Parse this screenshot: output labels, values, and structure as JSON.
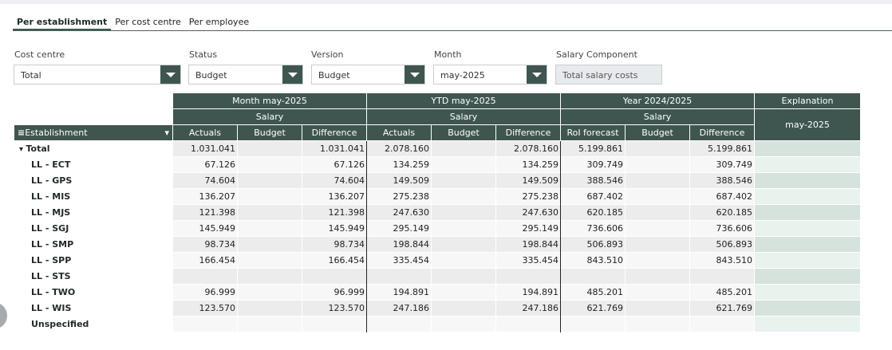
{
  "tabs": [
    {
      "label": "Per establishment",
      "active": true
    },
    {
      "label": "Per cost centre",
      "active": false
    },
    {
      "label": "Per employee",
      "active": false
    }
  ],
  "filters": {
    "cost_centre": {
      "label": "Cost centre",
      "value": "Total"
    },
    "status": {
      "label": "Status",
      "value": "Budget"
    },
    "version": {
      "label": "Version",
      "value": "Budget"
    },
    "month": {
      "label": "Month",
      "value": "may-2025"
    },
    "salary_component": {
      "label": "Salary Component",
      "value": "Total salary costs"
    }
  },
  "table": {
    "groups": [
      "Month may-2025",
      "YTD may-2025",
      "Year 2024/2025"
    ],
    "subgroup": "Salary",
    "explanation": {
      "label": "Explanation",
      "sub": "may-2025"
    },
    "establishment_header": "Establishment",
    "columns": [
      "Actuals",
      "Budget",
      "Difference",
      "Actuals",
      "Budget",
      "Difference",
      "RoI forecast",
      "Budget",
      "Difference"
    ],
    "rows": [
      {
        "label": "Total",
        "values": [
          "1.031.041",
          "",
          "1.031.041",
          "2.078.160",
          "",
          "2.078.160",
          "5.199.861",
          "",
          "5.199.861"
        ]
      },
      {
        "label": "LL - ECT",
        "values": [
          "67.126",
          "",
          "67.126",
          "134.259",
          "",
          "134.259",
          "309.749",
          "",
          "309.749"
        ]
      },
      {
        "label": "LL - GPS",
        "values": [
          "74.604",
          "",
          "74.604",
          "149.509",
          "",
          "149.509",
          "388.546",
          "",
          "388.546"
        ]
      },
      {
        "label": "LL - MIS",
        "values": [
          "136.207",
          "",
          "136.207",
          "275.238",
          "",
          "275.238",
          "687.402",
          "",
          "687.402"
        ]
      },
      {
        "label": "LL - MJS",
        "values": [
          "121.398",
          "",
          "121.398",
          "247.630",
          "",
          "247.630",
          "620.185",
          "",
          "620.185"
        ]
      },
      {
        "label": "LL - SGJ",
        "values": [
          "145.949",
          "",
          "145.949",
          "295.149",
          "",
          "295.149",
          "736.606",
          "",
          "736.606"
        ]
      },
      {
        "label": "LL - SMP",
        "values": [
          "98.734",
          "",
          "98.734",
          "198.844",
          "",
          "198.844",
          "506.893",
          "",
          "506.893"
        ]
      },
      {
        "label": "LL - SPP",
        "values": [
          "166.454",
          "",
          "166.454",
          "335.454",
          "",
          "335.454",
          "843.510",
          "",
          "843.510"
        ]
      },
      {
        "label": "LL - STS",
        "values": [
          "",
          "",
          "",
          "",
          "",
          "",
          "",
          "",
          ""
        ]
      },
      {
        "label": "LL - TWO",
        "values": [
          "96.999",
          "",
          "96.999",
          "194.891",
          "",
          "194.891",
          "485.201",
          "",
          "485.201"
        ]
      },
      {
        "label": "LL - WIS",
        "values": [
          "123.570",
          "",
          "123.570",
          "247.186",
          "",
          "247.186",
          "621.769",
          "",
          "621.769"
        ]
      },
      {
        "label": "Unspecified",
        "values": [
          "",
          "",
          "",
          "",
          "",
          "",
          "",
          "",
          ""
        ]
      }
    ]
  }
}
